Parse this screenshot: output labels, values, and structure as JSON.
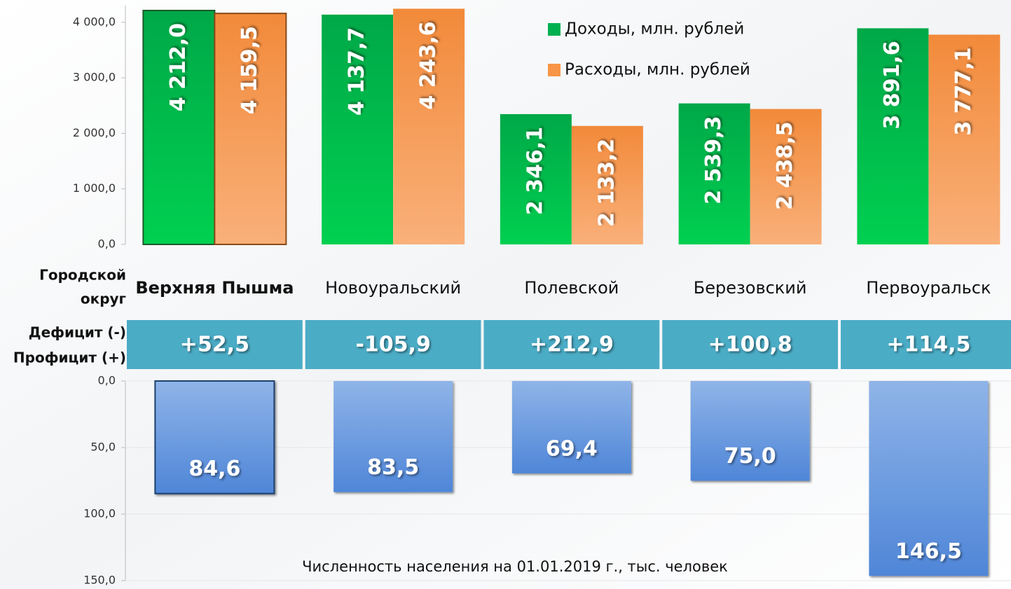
{
  "chart_data": [
    {
      "type": "bar",
      "xlabel": [
        "Городской",
        "округ"
      ],
      "categories": [
        "Верхняя Пышма",
        "Новоуральский",
        "Полевской",
        "Березовский",
        "Первоуральск"
      ],
      "highlight": 0,
      "series": [
        {
          "name": "Доходы, млн. рублей",
          "color": "#00b050",
          "values": [
            4212.0,
            4137.7,
            2346.1,
            2539.3,
            3891.6
          ],
          "value_labels": [
            "4 212,0",
            "4 137,7",
            "2 346,1",
            "2 539,3",
            "3 891,6"
          ]
        },
        {
          "name": "Расходы, млн. рублей",
          "color": "#f79646",
          "values": [
            4159.5,
            4243.6,
            2133.2,
            2438.5,
            3777.1
          ],
          "value_labels": [
            "4 159,5",
            "4 243,6",
            "2 133,2",
            "2 438,5",
            "3 777,1"
          ]
        }
      ],
      "ylim": [
        0,
        4300
      ],
      "yticks": [
        {
          "value": 0,
          "label": "0,0"
        },
        {
          "value": 1000,
          "label": "1 000,0"
        },
        {
          "value": 2000,
          "label": "2 000,0"
        },
        {
          "value": 3000,
          "label": "3 000,0"
        },
        {
          "value": 4000,
          "label": "4 000,0"
        }
      ],
      "legend": "top-right",
      "balance_title": [
        "Дефицит (-)",
        "Профицит (+)"
      ],
      "balance_color": "#4bacc6",
      "balance_values": [
        52.5,
        -105.9,
        212.9,
        100.8,
        114.5
      ],
      "balance_value_labels": [
        "+52,5",
        "-105,9",
        "+212,9",
        "+100,8",
        "+114,5"
      ]
    },
    {
      "type": "bar",
      "title": "Численность населения на 01.01.2019 г., тыс. человек",
      "inverted": true,
      "color": "#6a9ae0",
      "values": [
        84.6,
        83.5,
        69.4,
        75.0,
        146.5
      ],
      "value_labels": [
        "84,6",
        "83,5",
        "69,4",
        "75,0",
        "146,5"
      ],
      "ylim": [
        0,
        150
      ],
      "yticks": [
        {
          "value": 0,
          "label": "0,0"
        },
        {
          "value": 50,
          "label": "50,0"
        },
        {
          "value": 100,
          "label": "100,0"
        },
        {
          "value": 150,
          "label": "150,0"
        }
      ],
      "grid": true
    }
  ]
}
